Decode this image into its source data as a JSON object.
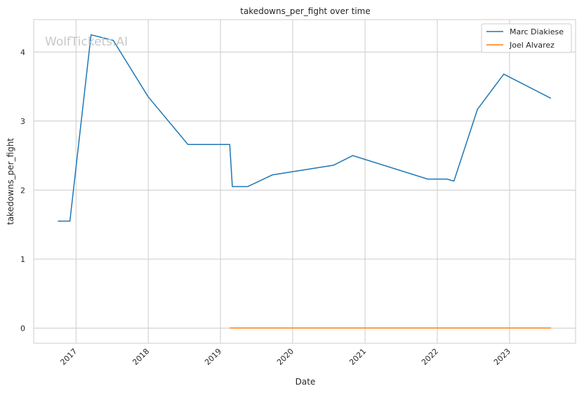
{
  "chart_data": {
    "type": "line",
    "title": "takedowns_per_fight over time",
    "xlabel": "Date",
    "ylabel": "takedowns_per_fight",
    "x_ticks": [
      "2017",
      "2018",
      "2019",
      "2020",
      "2021",
      "2022",
      "2023"
    ],
    "y_ticks": [
      "0",
      "1",
      "2",
      "3",
      "4"
    ],
    "xlim": [
      "2016-06-01",
      "2023-12-01"
    ],
    "ylim": [
      -0.22,
      4.47
    ],
    "grid": true,
    "legend_position": "top-right",
    "watermark": "WolfTickets.AI",
    "series": [
      {
        "name": "Marc Diakiese",
        "color": "#1f77b4",
        "points": [
          [
            "2016-10-01",
            1.55
          ],
          [
            "2016-12-01",
            1.55
          ],
          [
            "2017-03-18",
            4.25
          ],
          [
            "2017-07-08",
            4.17
          ],
          [
            "2018-01-01",
            3.35
          ],
          [
            "2018-07-21",
            2.66
          ],
          [
            "2019-02-17",
            2.66
          ],
          [
            "2019-03-02",
            2.05
          ],
          [
            "2019-05-18",
            2.05
          ],
          [
            "2019-09-21",
            2.22
          ],
          [
            "2020-07-25",
            2.36
          ],
          [
            "2020-10-31",
            2.5
          ],
          [
            "2021-11-13",
            2.16
          ],
          [
            "2022-02-19",
            2.16
          ],
          [
            "2022-03-26",
            2.13
          ],
          [
            "2022-07-23",
            3.17
          ],
          [
            "2022-12-03",
            3.68
          ],
          [
            "2023-07-29",
            3.33
          ]
        ]
      },
      {
        "name": "Joel Alvarez",
        "color": "#ff7f0e",
        "points": [
          [
            "2019-02-17",
            0
          ],
          [
            "2023-07-29",
            0
          ]
        ]
      }
    ]
  }
}
